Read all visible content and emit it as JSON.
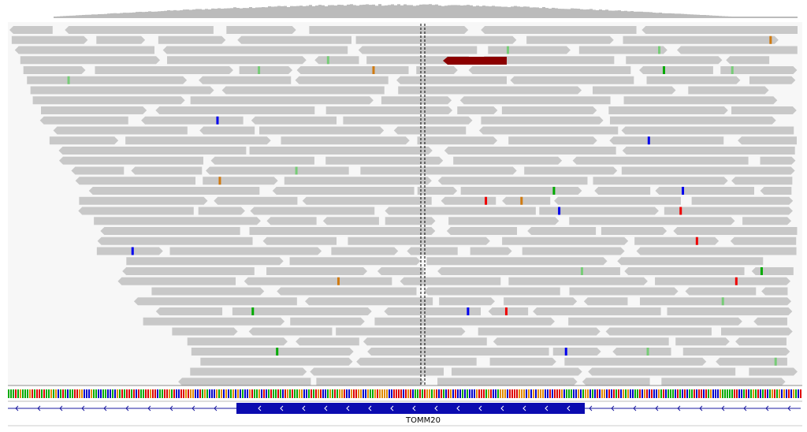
{
  "gene": {
    "label": "TOMM20"
  }
}
